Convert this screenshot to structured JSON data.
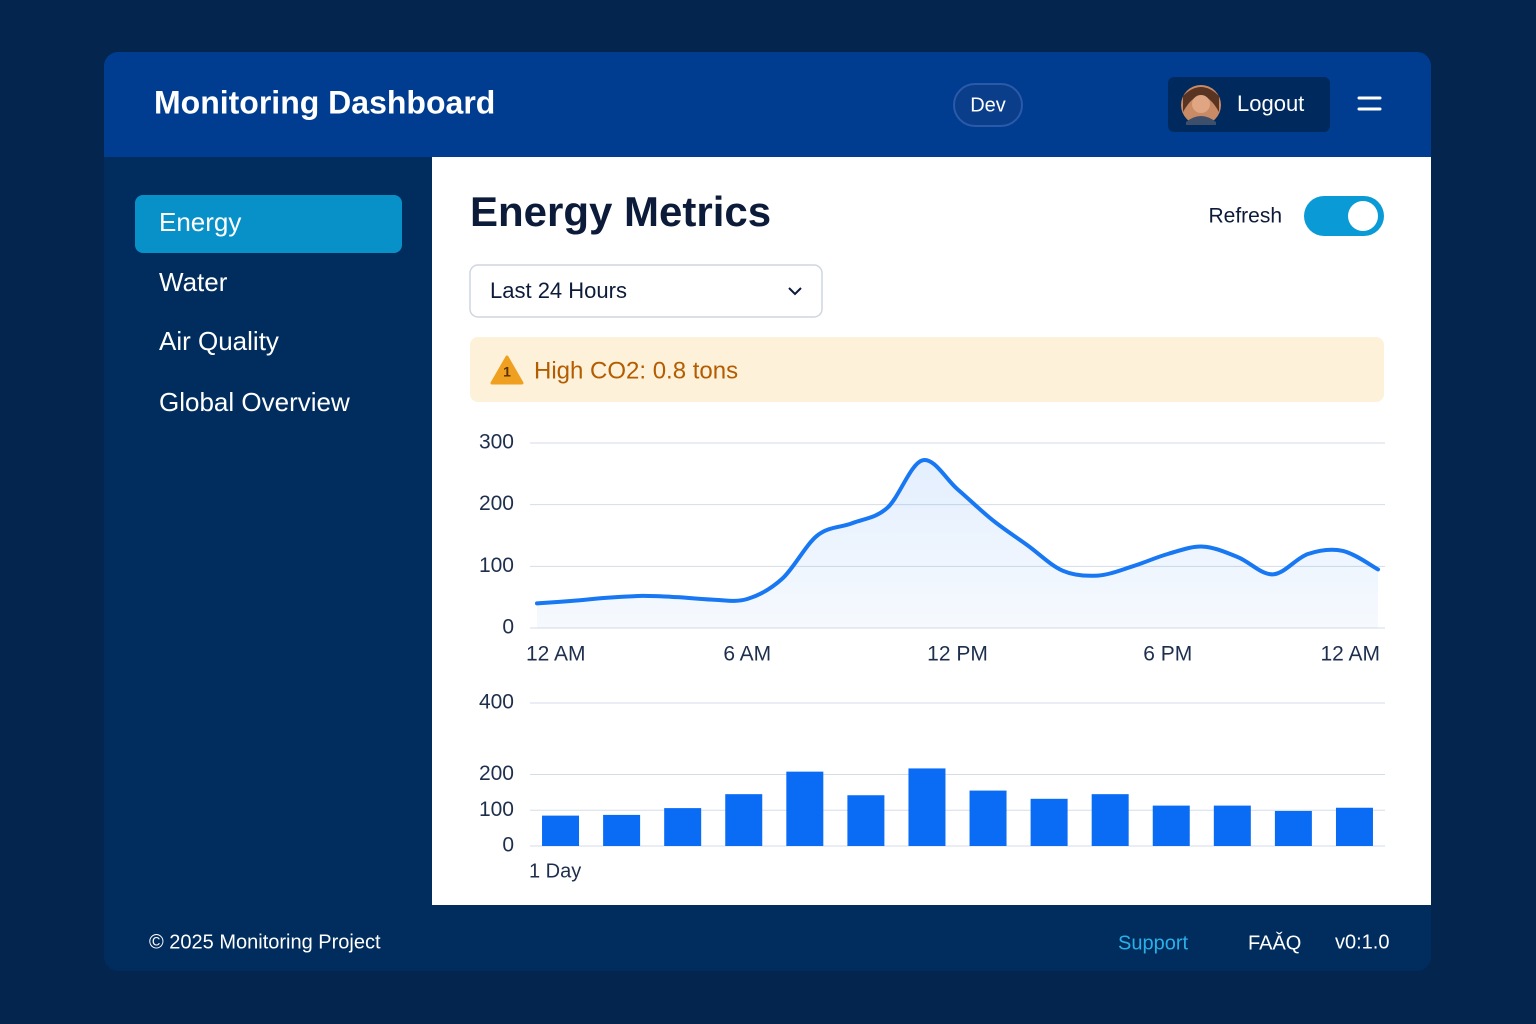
{
  "header": {
    "title": "Monitoring Dashboard",
    "env": "Dev",
    "logout": "Logout"
  },
  "sidebar": {
    "items": [
      "Energy",
      "Water",
      "Air Quality",
      "Global Overview"
    ]
  },
  "main": {
    "title": "Energy Metrics",
    "refresh": "Refresh",
    "range": "Last 24 Hours",
    "alert_icon": "1",
    "alert": "High CO2: 0.8 tons"
  },
  "chart_data": [
    {
      "type": "line",
      "color": "#1877f2",
      "x": [
        0,
        1,
        2,
        3,
        4,
        5,
        6,
        7,
        8,
        9,
        10,
        11,
        12,
        13,
        14,
        15,
        16,
        17,
        18,
        19,
        20,
        21,
        22,
        23,
        24
      ],
      "values": [
        40,
        44,
        49,
        52,
        50,
        46,
        47,
        80,
        150,
        170,
        195,
        272,
        225,
        175,
        134,
        93,
        85,
        100,
        120,
        132,
        115,
        87,
        120,
        125,
        95
      ],
      "xlim": [
        0,
        24
      ],
      "xticks": [
        {
          "value": 0,
          "label": "12 AM"
        },
        {
          "value": 6,
          "label": "6 AM"
        },
        {
          "value": 12,
          "label": "12 PM"
        },
        {
          "value": 18,
          "label": "6 PM"
        },
        {
          "value": 24,
          "label": "12 AM"
        }
      ],
      "ylim": [
        0,
        300
      ],
      "yticks": [
        0,
        100,
        200,
        300
      ],
      "grid": true
    },
    {
      "type": "bar",
      "color": "#0a6cf5",
      "xlabel": "1 Day",
      "categories": [
        null,
        null,
        null,
        null,
        null,
        null,
        null,
        null,
        null,
        null,
        null,
        null,
        null,
        null
      ],
      "values": [
        85,
        87,
        106,
        145,
        208,
        142,
        217,
        155,
        132,
        145,
        113,
        113,
        98,
        107
      ],
      "ylim": [
        0,
        400
      ],
      "yticks": [
        0,
        100,
        200,
        400
      ],
      "grid": true
    }
  ],
  "footer": {
    "copyright": "© 2025 Monitoring Project",
    "links": [
      "Support",
      "FAǍQ"
    ],
    "version": "v0:1.0"
  }
}
